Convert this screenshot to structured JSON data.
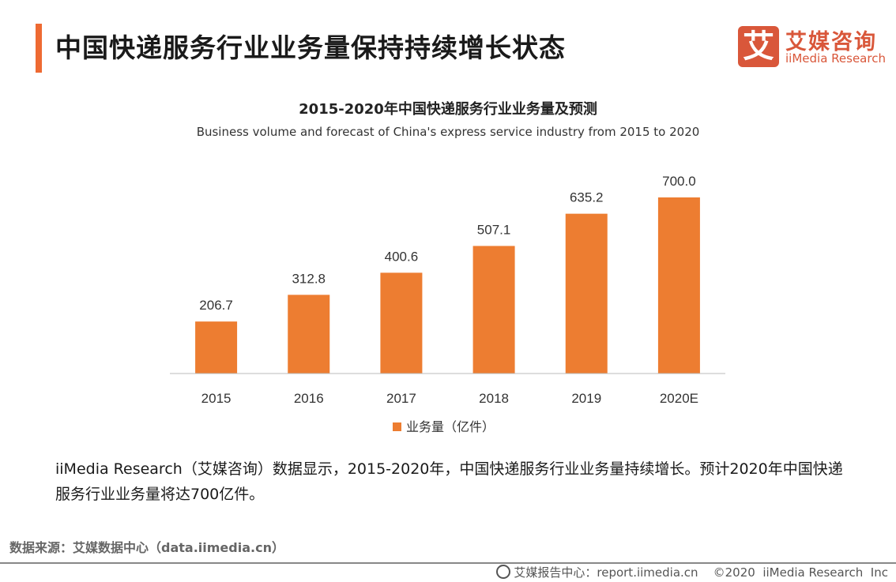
{
  "header": {
    "title": "中国快递服务行业业务量保持持续增长状态",
    "accent_color": "#ee6a32"
  },
  "logo": {
    "mark": "艾",
    "cn": "艾媒咨询",
    "en": "iiMedia Research",
    "color": "#d9573a"
  },
  "chart_data": {
    "type": "bar",
    "title": "2015-2020年中国快递服务行业业务量及预测",
    "subtitle": "Business volume and forecast of China's express service industry from 2015 to 2020",
    "categories": [
      "2015",
      "2016",
      "2017",
      "2018",
      "2019",
      "2020E"
    ],
    "series": [
      {
        "name": "业务量（亿件）",
        "values": [
          206.7,
          312.8,
          400.6,
          507.1,
          635.2,
          700.0
        ],
        "color": "#ed7d31"
      }
    ],
    "data_labels": [
      "206.7",
      "312.8",
      "400.6",
      "507.1",
      "635.2",
      "700.0"
    ],
    "ylim": [
      0,
      700
    ],
    "grid": false,
    "legend": "bottom"
  },
  "description": "iiMedia Research（艾媒咨询）数据显示，2015-2020年，中国快递服务行业业务量持续增长。预计2020年中国快递服务行业业务量将达700亿件。",
  "source": "数据来源：艾媒数据中心（data.iimedia.cn）",
  "footer": {
    "text": "艾媒报告中心：report.iimedia.cn    ©2020  iiMedia Research  Inc"
  }
}
